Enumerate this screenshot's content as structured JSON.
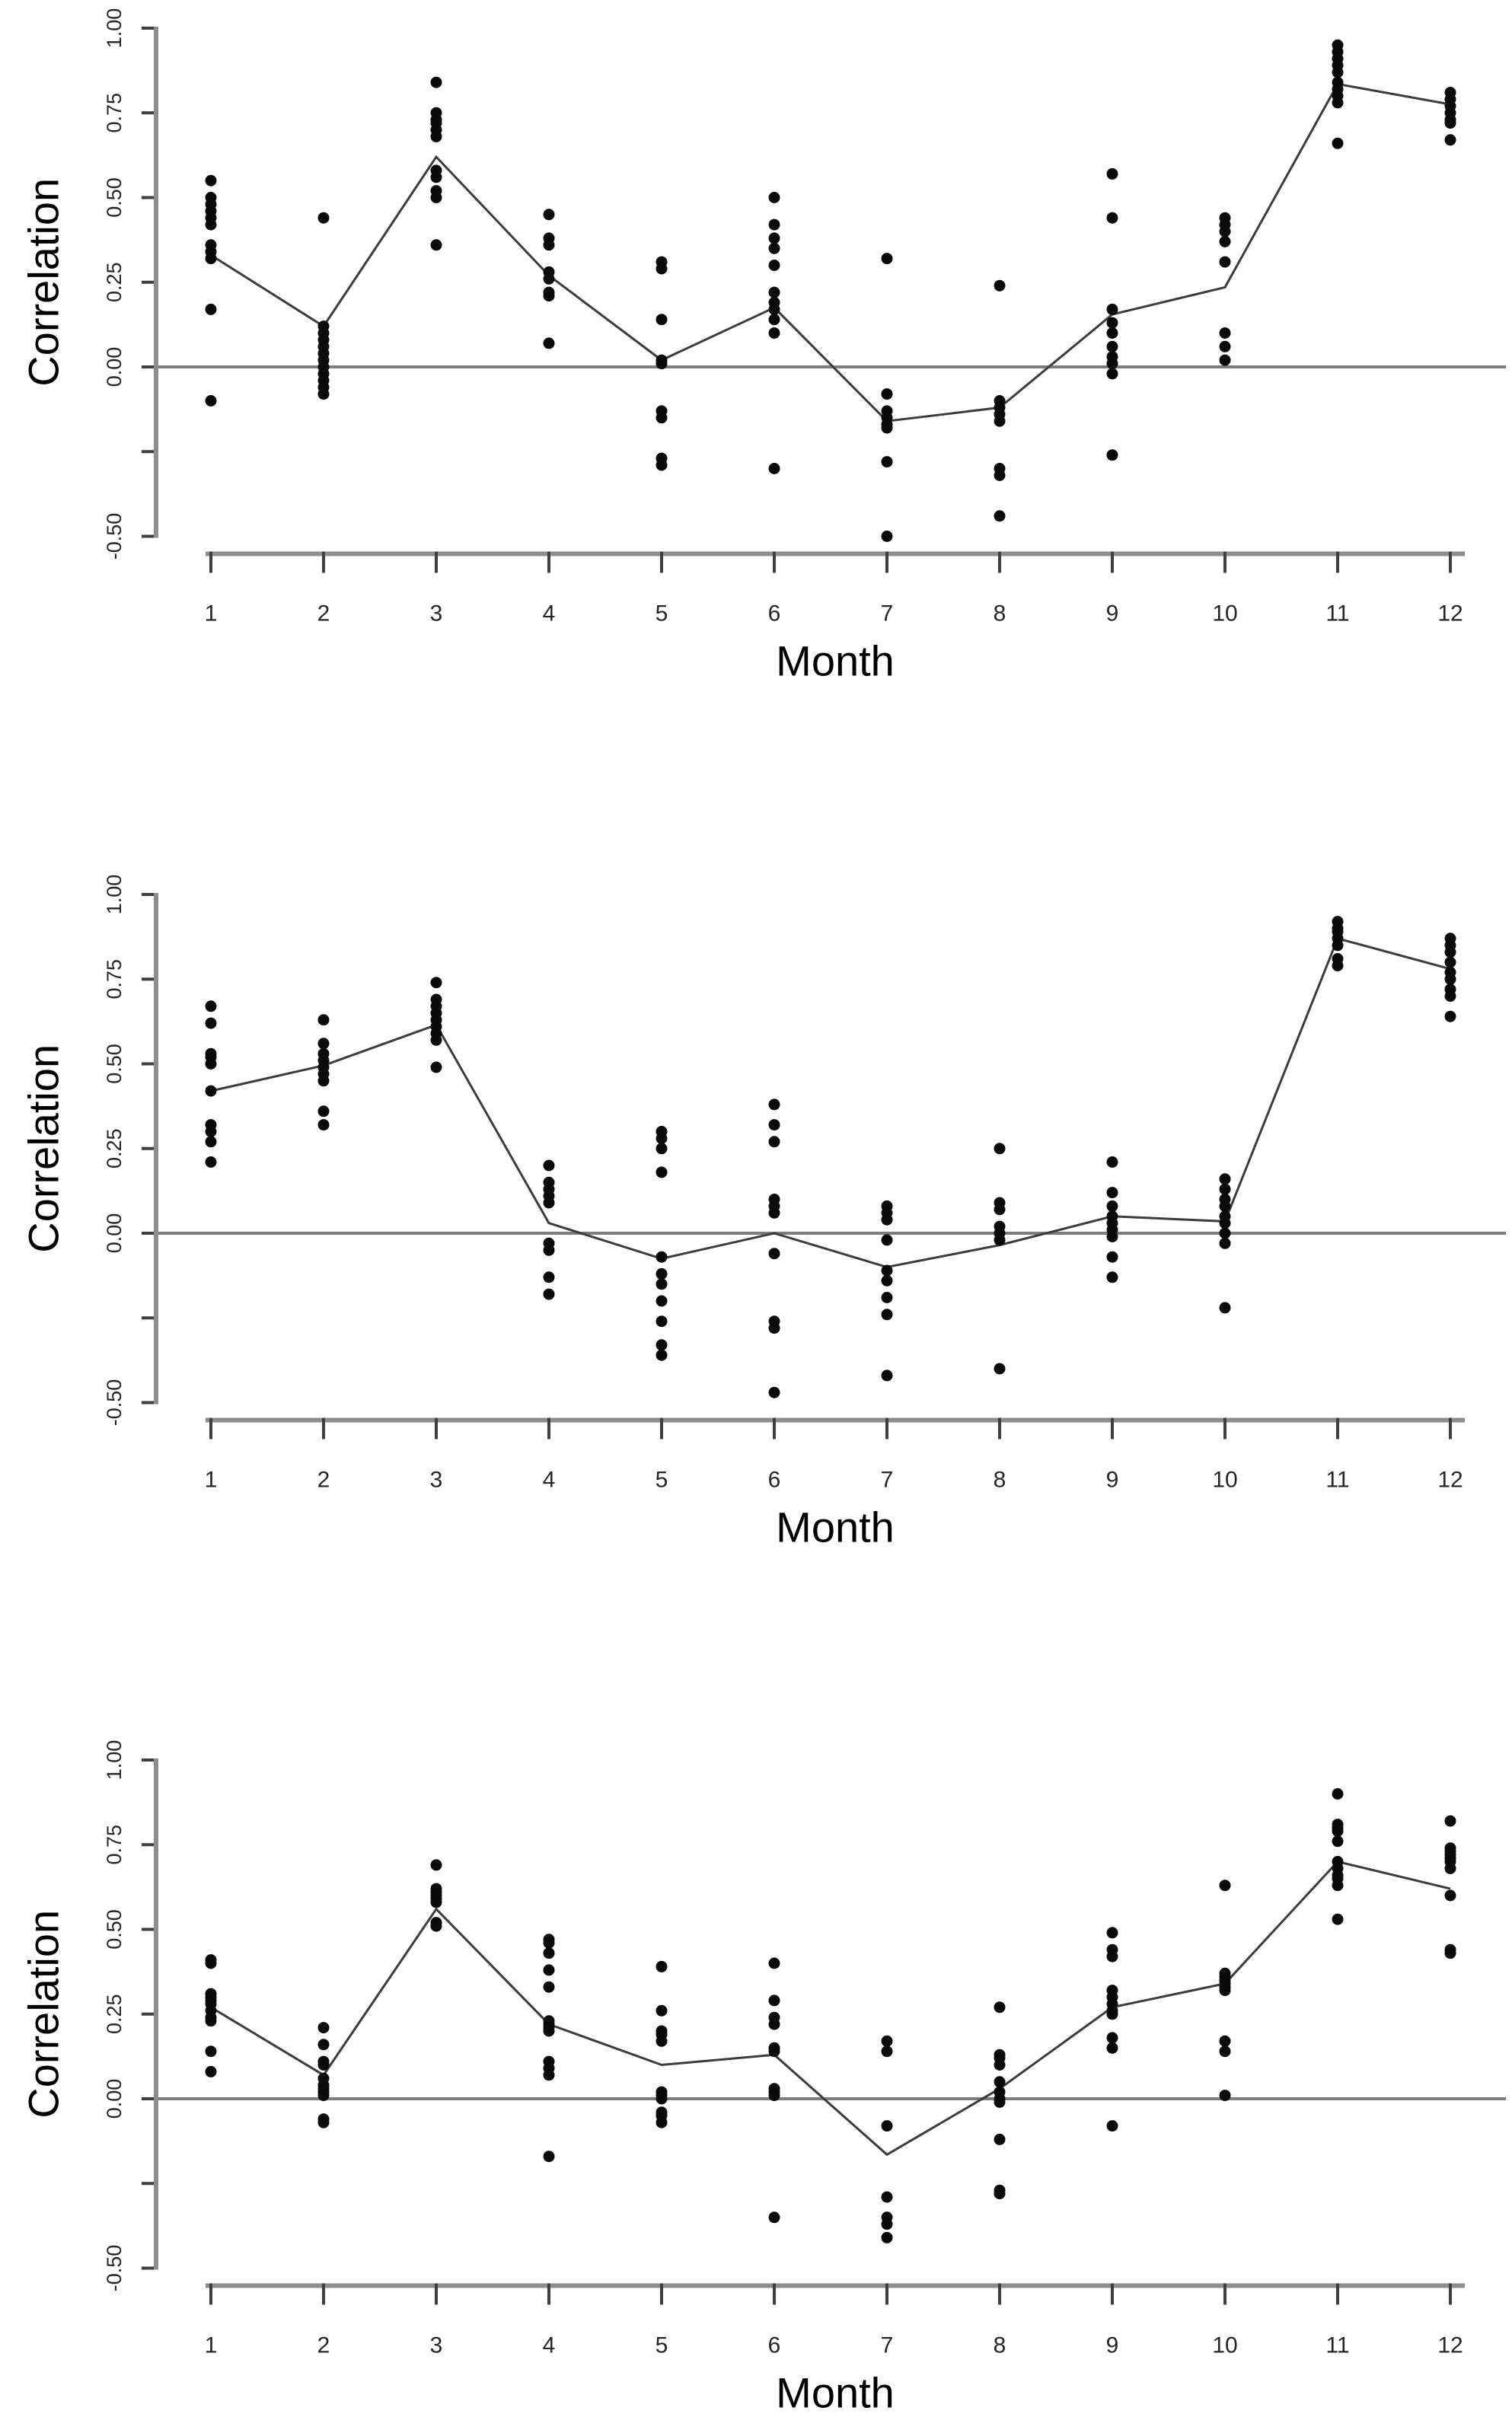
{
  "figure": {
    "background": "#ffffff",
    "colors": {
      "point": "#0a0a0a",
      "mean_line": "#3c3c3c",
      "zero_line": "#7d7d7d",
      "axis_bar": "#8d8d8d",
      "tick": "#3f3f3f",
      "tick_label": "#262626",
      "axis_title": "#000000"
    }
  },
  "chart_data": [
    {
      "type": "scatter",
      "panel": "top",
      "xlabel": "Month",
      "ylabel": "Correlation",
      "x_categories": [
        "1",
        "2",
        "3",
        "4",
        "5",
        "6",
        "7",
        "8",
        "9",
        "10",
        "11",
        "12"
      ],
      "y_tick_labels": [
        "1.00",
        "0.75",
        "0.50",
        "0.25",
        "0.00",
        "-0.50"
      ],
      "y_tick_label_values": [
        1.0,
        0.75,
        0.5,
        0.25,
        0.0,
        -0.5
      ],
      "y_tick_values_all": [
        1.0,
        0.75,
        0.5,
        0.25,
        0.0,
        -0.25,
        -0.5
      ],
      "ylim": [
        -0.5,
        1.0
      ],
      "reference_line_y": 0,
      "grid": false,
      "legend": "none",
      "points_by_month": [
        [
          0.55,
          0.5,
          0.48,
          0.46,
          0.44,
          0.42,
          0.36,
          0.34,
          0.32,
          0.17,
          -0.1
        ],
        [
          0.44,
          0.12,
          0.1,
          0.08,
          0.06,
          0.04,
          0.02,
          0.0,
          -0.02,
          -0.04,
          -0.06,
          -0.08
        ],
        [
          0.84,
          0.75,
          0.73,
          0.72,
          0.7,
          0.68,
          0.58,
          0.56,
          0.52,
          0.5,
          0.36
        ],
        [
          0.45,
          0.38,
          0.36,
          0.28,
          0.26,
          0.22,
          0.21,
          0.07
        ],
        [
          0.31,
          0.29,
          0.14,
          0.02,
          0.01,
          -0.13,
          -0.15,
          -0.27,
          -0.29
        ],
        [
          0.5,
          0.42,
          0.38,
          0.35,
          0.3,
          0.22,
          0.19,
          0.17,
          0.14,
          0.1,
          -0.3
        ],
        [
          0.32,
          -0.08,
          -0.13,
          -0.15,
          -0.17,
          -0.18,
          -0.28,
          -0.5
        ],
        [
          0.24,
          -0.1,
          -0.12,
          -0.14,
          -0.16,
          -0.3,
          -0.32,
          -0.44
        ],
        [
          0.57,
          0.44,
          0.17,
          0.13,
          0.1,
          0.06,
          0.03,
          0.01,
          -0.02,
          -0.26
        ],
        [
          0.44,
          0.42,
          0.4,
          0.37,
          0.31,
          0.1,
          0.06,
          0.02
        ],
        [
          0.95,
          0.93,
          0.91,
          0.89,
          0.87,
          0.84,
          0.82,
          0.8,
          0.78,
          0.66
        ],
        [
          0.81,
          0.79,
          0.77,
          0.75,
          0.73,
          0.72,
          0.67
        ]
      ],
      "mean_line": [
        0.33,
        0.12,
        0.62,
        0.27,
        0.02,
        0.175,
        -0.16,
        -0.12,
        0.155,
        0.235,
        0.835,
        0.775
      ]
    },
    {
      "type": "scatter",
      "panel": "middle",
      "xlabel": "Month",
      "ylabel": "Correlation",
      "x_categories": [
        "1",
        "2",
        "3",
        "4",
        "5",
        "6",
        "7",
        "8",
        "9",
        "10",
        "11",
        "12"
      ],
      "y_tick_labels": [
        "1.00",
        "0.75",
        "0.50",
        "0.25",
        "0.00",
        "-0.50"
      ],
      "y_tick_label_values": [
        1.0,
        0.75,
        0.5,
        0.25,
        0.0,
        -0.5
      ],
      "y_tick_values_all": [
        1.0,
        0.75,
        0.5,
        0.25,
        0.0,
        -0.25,
        -0.5
      ],
      "ylim": [
        -0.5,
        1.0
      ],
      "reference_line_y": 0,
      "grid": false,
      "legend": "none",
      "points_by_month": [
        [
          0.67,
          0.62,
          0.53,
          0.52,
          0.5,
          0.42,
          0.32,
          0.3,
          0.27,
          0.21
        ],
        [
          0.63,
          0.56,
          0.53,
          0.51,
          0.49,
          0.47,
          0.45,
          0.36,
          0.32
        ],
        [
          0.74,
          0.69,
          0.67,
          0.65,
          0.63,
          0.61,
          0.59,
          0.57,
          0.49
        ],
        [
          0.2,
          0.15,
          0.13,
          0.11,
          0.09,
          -0.03,
          -0.05,
          -0.13,
          -0.18
        ],
        [
          0.3,
          0.28,
          0.25,
          0.18,
          -0.07,
          -0.12,
          -0.15,
          -0.2,
          -0.26,
          -0.33,
          -0.36
        ],
        [
          0.38,
          0.32,
          0.27,
          0.1,
          0.08,
          0.06,
          -0.06,
          -0.26,
          -0.28,
          -0.47
        ],
        [
          0.08,
          0.06,
          0.04,
          -0.02,
          -0.11,
          -0.14,
          -0.19,
          -0.24,
          -0.42
        ],
        [
          0.25,
          0.09,
          0.07,
          0.02,
          0.0,
          -0.02,
          -0.4
        ],
        [
          0.21,
          0.12,
          0.08,
          0.05,
          0.03,
          0.01,
          -0.01,
          -0.07,
          -0.13
        ],
        [
          0.16,
          0.13,
          0.1,
          0.08,
          0.05,
          0.03,
          0.0,
          -0.03,
          -0.22
        ],
        [
          0.92,
          0.9,
          0.89,
          0.87,
          0.85,
          0.81,
          0.79
        ],
        [
          0.87,
          0.85,
          0.83,
          0.8,
          0.77,
          0.75,
          0.72,
          0.7,
          0.64
        ]
      ],
      "mean_line": [
        0.42,
        0.495,
        0.615,
        0.03,
        -0.075,
        0.0,
        -0.1,
        -0.035,
        0.05,
        0.035,
        0.87,
        0.78
      ]
    },
    {
      "type": "scatter",
      "panel": "bottom",
      "xlabel": "Month",
      "ylabel": "Correlation",
      "x_categories": [
        "1",
        "2",
        "3",
        "4",
        "5",
        "6",
        "7",
        "8",
        "9",
        "10",
        "11",
        "12"
      ],
      "y_tick_labels": [
        "1.00",
        "0.75",
        "0.50",
        "0.25",
        "0.00",
        "-0.50"
      ],
      "y_tick_label_values": [
        1.0,
        0.75,
        0.5,
        0.25,
        0.0,
        -0.5
      ],
      "y_tick_values_all": [
        1.0,
        0.75,
        0.5,
        0.25,
        0.0,
        -0.25,
        -0.5
      ],
      "ylim": [
        -0.5,
        1.0
      ],
      "reference_line_y": 0,
      "grid": false,
      "legend": "none",
      "points_by_month": [
        [
          0.41,
          0.4,
          0.31,
          0.3,
          0.29,
          0.28,
          0.26,
          0.24,
          0.23,
          0.14,
          0.08
        ],
        [
          0.21,
          0.16,
          0.11,
          0.1,
          0.06,
          0.04,
          0.03,
          0.02,
          0.01,
          -0.06,
          -0.07
        ],
        [
          0.69,
          0.62,
          0.61,
          0.6,
          0.59,
          0.58,
          0.52,
          0.51
        ],
        [
          0.47,
          0.46,
          0.43,
          0.38,
          0.33,
          0.23,
          0.22,
          0.21,
          0.2,
          0.11,
          0.09,
          0.07,
          -0.17
        ],
        [
          0.39,
          0.26,
          0.2,
          0.19,
          0.17,
          0.02,
          0.01,
          0.0,
          -0.04,
          -0.05,
          -0.07
        ],
        [
          0.4,
          0.29,
          0.24,
          0.22,
          0.15,
          0.14,
          0.03,
          0.02,
          0.01,
          -0.35
        ],
        [
          0.17,
          0.14,
          -0.08,
          -0.29,
          -0.35,
          -0.37,
          -0.41
        ],
        [
          0.27,
          0.13,
          0.12,
          0.1,
          0.05,
          0.02,
          0.0,
          -0.01,
          -0.12,
          -0.27,
          -0.28
        ],
        [
          0.49,
          0.44,
          0.42,
          0.32,
          0.3,
          0.28,
          0.26,
          0.25,
          0.18,
          0.15,
          -0.08
        ],
        [
          0.63,
          0.37,
          0.36,
          0.35,
          0.34,
          0.33,
          0.32,
          0.17,
          0.14,
          0.01
        ],
        [
          0.9,
          0.81,
          0.8,
          0.79,
          0.76,
          0.7,
          0.68,
          0.66,
          0.65,
          0.63,
          0.53
        ],
        [
          0.82,
          0.74,
          0.73,
          0.72,
          0.71,
          0.7,
          0.68,
          0.6,
          0.44,
          0.43
        ]
      ],
      "mean_line": [
        0.27,
        0.07,
        0.56,
        0.22,
        0.1,
        0.13,
        -0.165,
        0.03,
        0.27,
        0.34,
        0.7,
        0.62
      ]
    }
  ]
}
